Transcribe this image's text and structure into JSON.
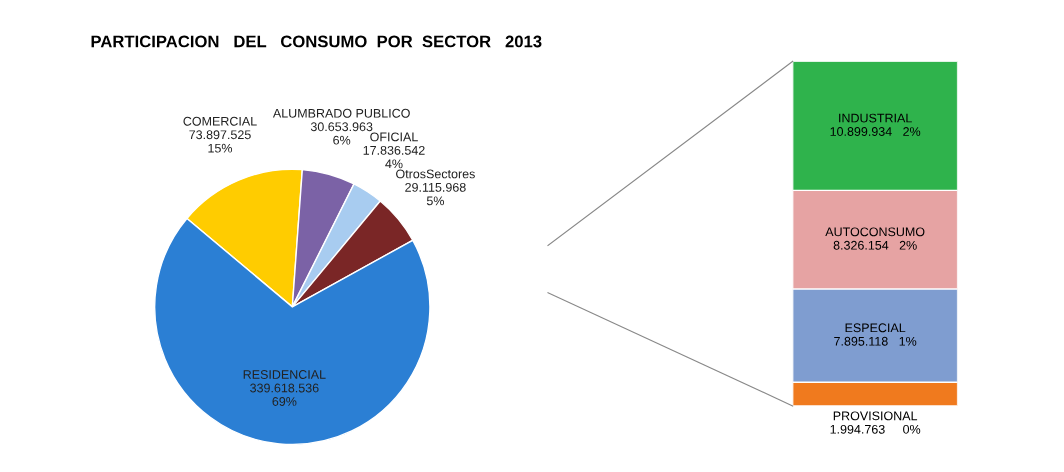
{
  "chart_data": [
    {
      "type": "pie",
      "title": "PARTICIPACION   DEL   CONSUMO  POR  SECTOR   2013",
      "categories": [
        "COMERCIAL",
        "ALUMBRADO PUBLICO",
        "OFICIAL",
        "OtrosSectores",
        "RESIDENCIAL"
      ],
      "values": [
        73897525,
        30653963,
        17836542,
        29115968,
        339618536
      ],
      "value_labels": [
        "73.897.525\n15%",
        "30.653.963\n6%",
        "17.836.542\n4%",
        "29.115.968\n5%",
        "339.618.536\n69%"
      ],
      "colors": [
        "#ffcc00",
        "#7b62a6",
        "#a8ccf0",
        "#7a2626",
        "#2b7fd4"
      ]
    },
    {
      "type": "bar",
      "stacked": true,
      "categories": [
        null
      ],
      "series": [
        {
          "name": "PROVISIONAL",
          "color": "#f07a1e",
          "values": [
            1994763
          ],
          "value_labels": [
            "1.994.763     0%"
          ]
        },
        {
          "name": "ESPECIAL",
          "color": "#7f9dd0",
          "values": [
            7895118
          ],
          "value_labels": [
            "7.895.118   1%"
          ]
        },
        {
          "name": "AUTOCONSUMO",
          "color": "#e6a3a3",
          "values": [
            8326154
          ],
          "value_labels": [
            "8.326.154   2%"
          ]
        },
        {
          "name": "INDUSTRIAL",
          "color": "#2fb34c",
          "values": [
            10899934
          ],
          "value_labels": [
            "10.899.934   2%"
          ]
        }
      ]
    }
  ]
}
